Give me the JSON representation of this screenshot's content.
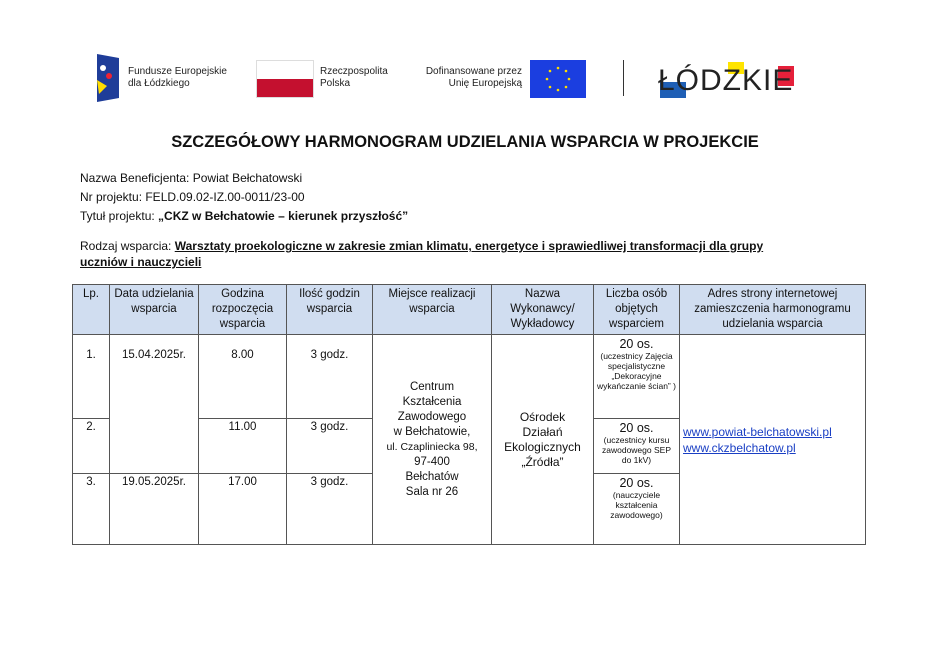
{
  "logos": {
    "fe_text1": "Fundusze Europejskie",
    "fe_text2": "dla Łódzkiego",
    "rp_text1": "Rzeczpospolita",
    "rp_text2": "Polska",
    "eu_text1": "Dofinansowane przez",
    "eu_text2": "Unię Europejską",
    "lodzkie": "ŁÓDZKIE"
  },
  "title": "SZCZEGÓŁOWY HARMONOGRAM UDZIELANIA WSPARCIA W PROJEKCIE",
  "beneficiary": "Nazwa Beneficjenta: Powiat Bełchatowski",
  "project_no": "Nr projektu: FELD.09.02-IZ.00-0011/23-00",
  "project_title_label": "Tytuł projektu: ",
  "project_title": "„CKZ w Bełchatowie – kierunek przyszłość”",
  "support_label": "Rodzaj wsparcia: ",
  "support_type": "Warsztaty proekologiczne w zakresie zmian klimatu, energetyce i sprawiedliwej transformacji dla grupy uczniów i nauczycieli",
  "headers": [
    "Lp.",
    "Data udzielania wsparcia",
    "Godzina rozpoczęcia wsparcia",
    "Ilość godzin wsparcia",
    "Miejsce realizacji wsparcia",
    "Nazwa Wykonawcy/ Wykładowcy",
    "Liczba osób objętych wsparciem",
    "Adres strony internetowej zamieszczenia harmonogramu udzielania wsparcia"
  ],
  "rows": [
    {
      "lp": "1.",
      "date": "15.04.2025r.",
      "hour": "8.00",
      "hours": "3 godz.",
      "count": "20 os.",
      "note": "(uczestnicy Zajęcia specjalistyczne „Dekoracyjne wykańczanie ścian” )"
    },
    {
      "lp": "2.",
      "hour": "11.00",
      "hours": "3 godz.",
      "count": "20 os.",
      "note": "(uczestnicy kursu zawodowego SEP do 1kV)"
    },
    {
      "lp": "3.",
      "date": "19.05.2025r.",
      "hour": "17.00",
      "hours": "3 godz.",
      "count": "20 os.",
      "note": "(nauczyciele kształcenia zawodowego)"
    }
  ],
  "place": [
    "Centrum",
    "Kształcenia",
    "Zawodowego",
    "w Bełchatowie,",
    "ul. Czapliniecka 98,",
    "97-400",
    "Bełchatów",
    "Sala nr 26"
  ],
  "contractor": [
    "Ośrodek",
    "Działań",
    "Ekologicznych",
    "„Źródła”"
  ],
  "links": [
    "www.powiat-belchatowski.pl",
    "www.ckzbelchatow.pl"
  ]
}
